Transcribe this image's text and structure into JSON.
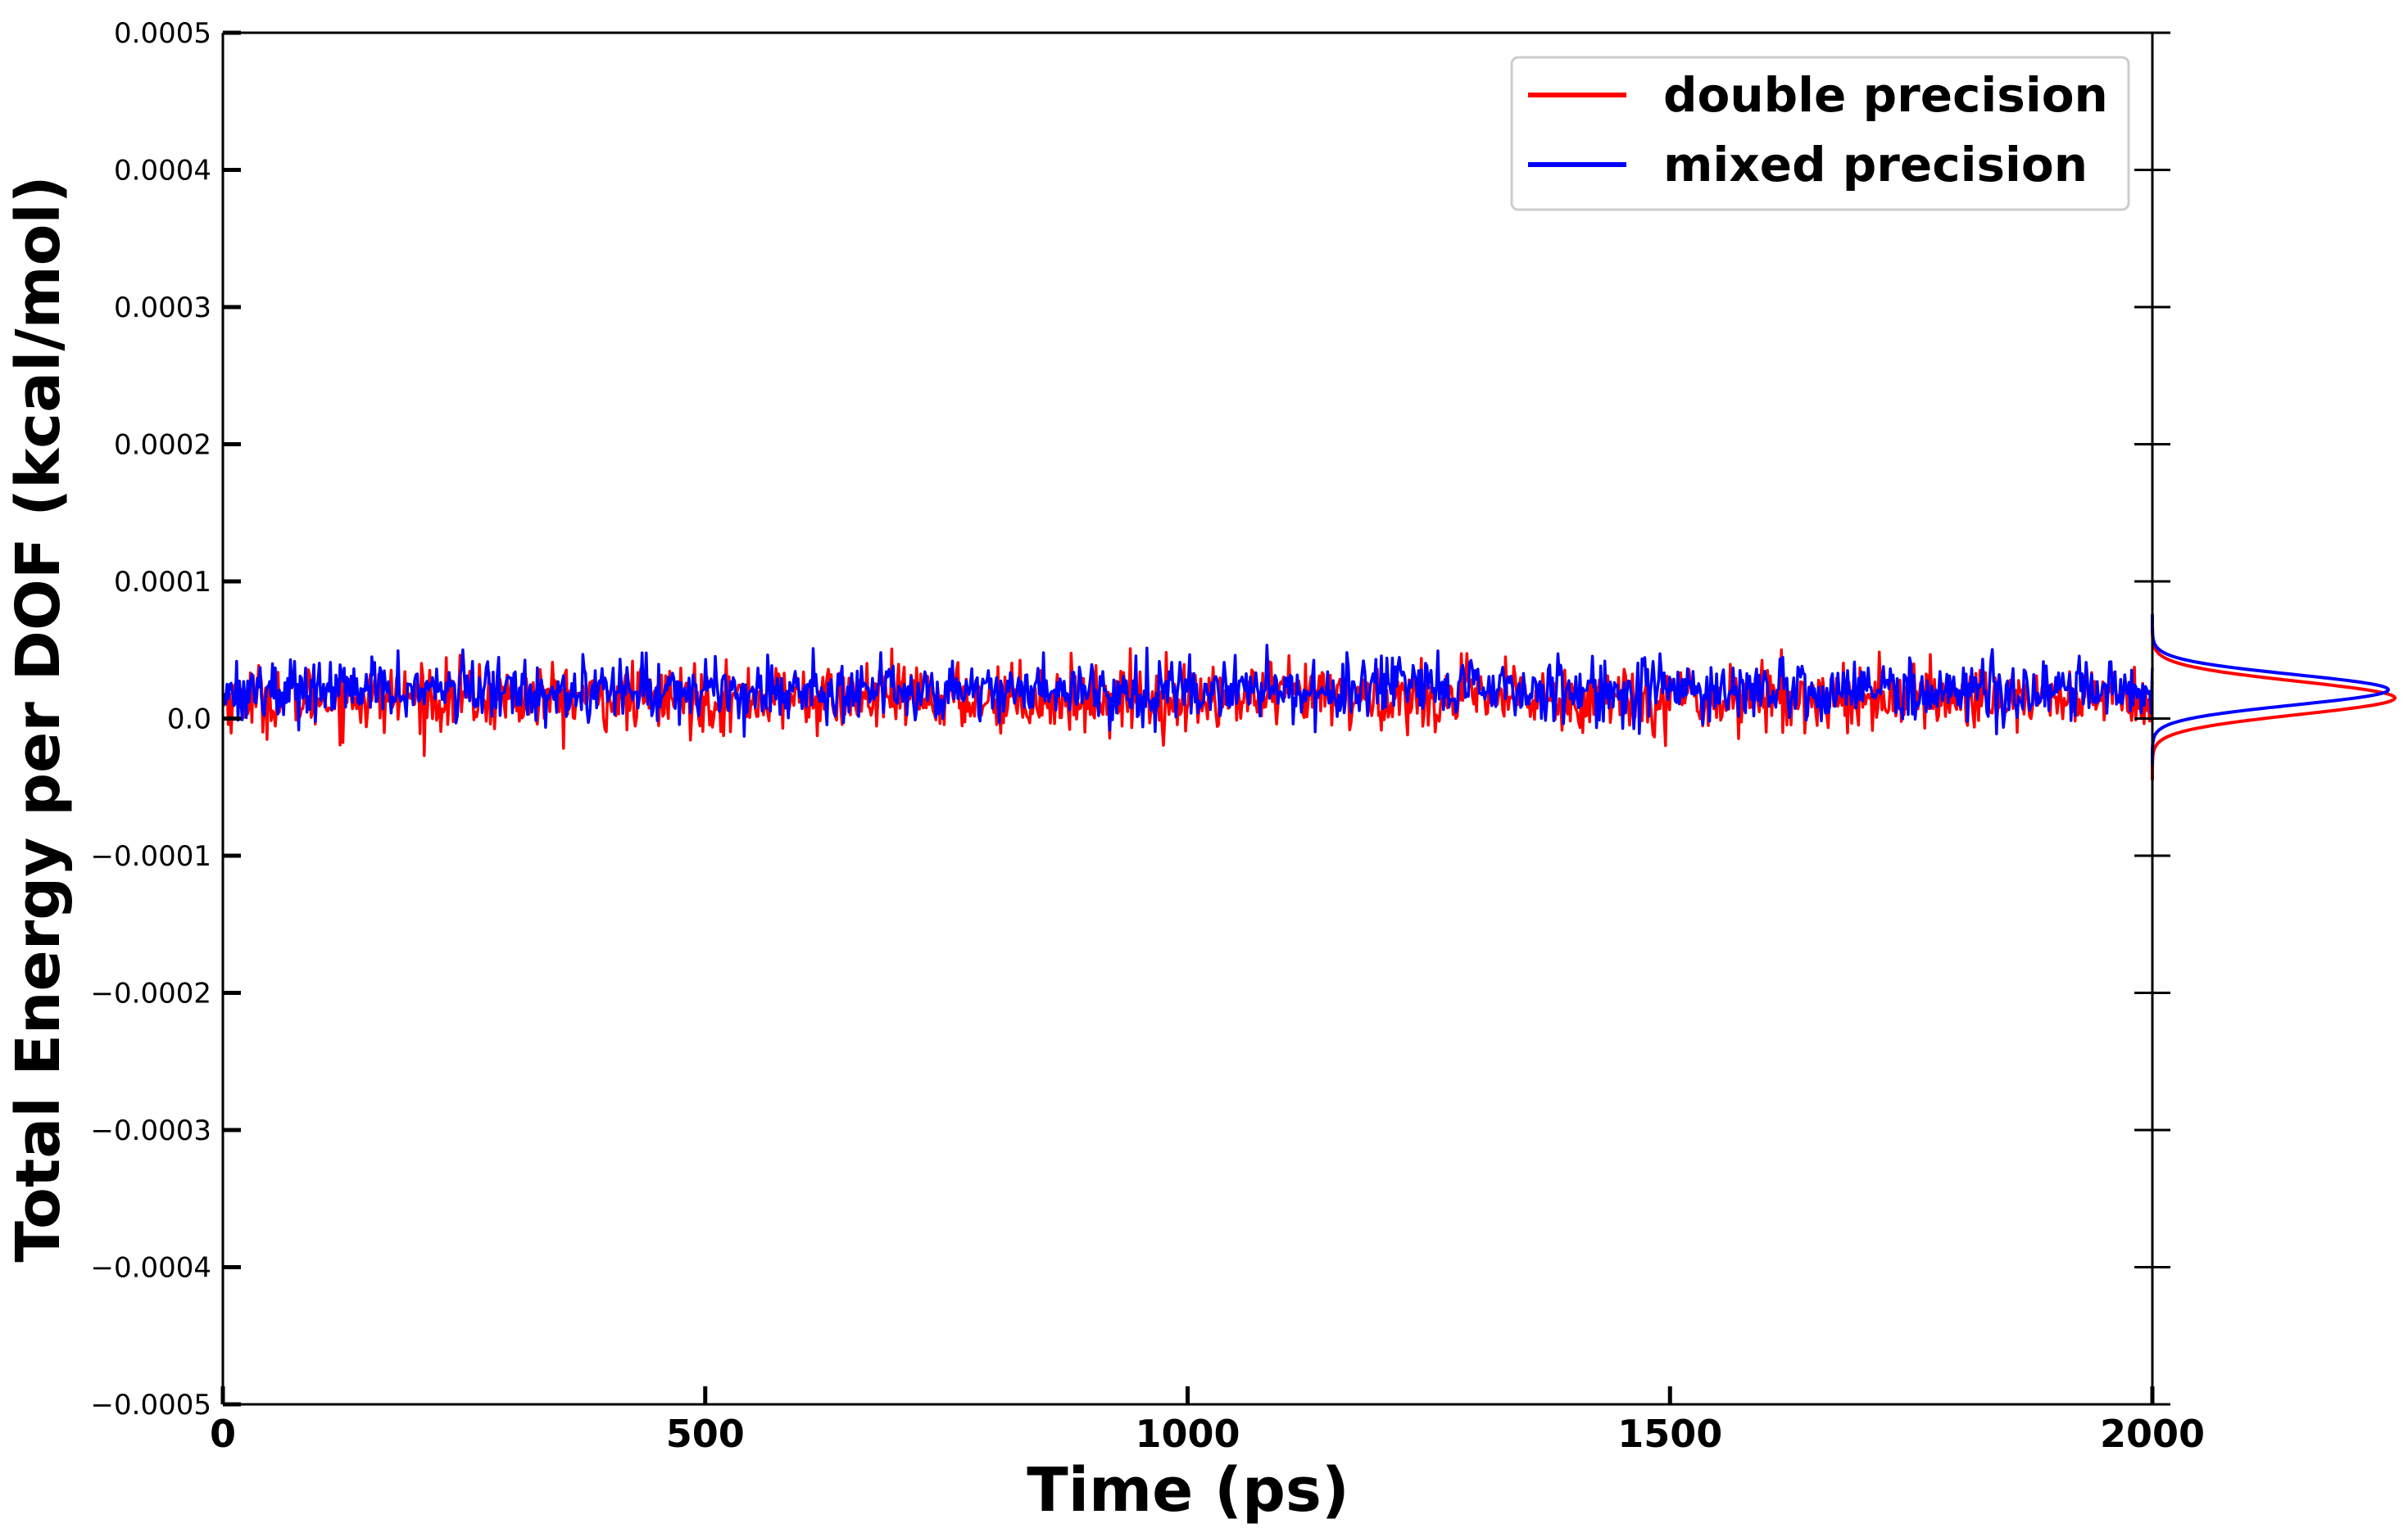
{
  "chart_data": {
    "type": "line",
    "xlabel": "Time (ps)",
    "ylabel": "Total Energy per DOF (kcal/mol)",
    "xlim": [
      0,
      2000
    ],
    "ylim": [
      -0.0005,
      0.0005
    ],
    "x_ticks": [
      0,
      500,
      1000,
      1500,
      2000
    ],
    "x_tick_labels": [
      "0",
      "500",
      "1000",
      "1500",
      "2000"
    ],
    "y_ticks": [
      0.0005,
      0.0004,
      0.0003,
      0.0002,
      0.0001,
      0.0,
      -0.0001,
      -0.0002,
      -0.0003,
      -0.0004,
      -0.0005
    ],
    "y_tick_labels": [
      "0.0005",
      "0.0004",
      "0.0003",
      "0.0002",
      "0.0001",
      "0.0",
      "−0.0001",
      "−0.0002",
      "−0.0003",
      "−0.0004",
      "−0.0005"
    ],
    "grid": false,
    "legend_position": "top-right",
    "series": [
      {
        "name": "double precision",
        "color": "#ff0000",
        "mean": 1.5e-05,
        "min": -3.7e-05,
        "max": 6.3e-05,
        "std": 1.2e-05,
        "points": 1400,
        "x_range": [
          0,
          2000
        ]
      },
      {
        "name": "mixed precision",
        "color": "#0000ff",
        "mean": 2.1e-05,
        "min": -3.7e-05,
        "max": 7.2e-05,
        "std": 1.1e-05,
        "points": 1400,
        "x_range": [
          0,
          2000
        ]
      }
    ],
    "marginal_distribution": {
      "type": "density",
      "side": "right",
      "series": [
        {
          "name": "double precision",
          "color": "#ff0000",
          "peak_y": 1.5e-05,
          "width_sd": 1.2e-05
        },
        {
          "name": "mixed precision",
          "color": "#0000ff",
          "peak_y": 2.1e-05,
          "width_sd": 1.1e-05
        }
      ]
    }
  }
}
